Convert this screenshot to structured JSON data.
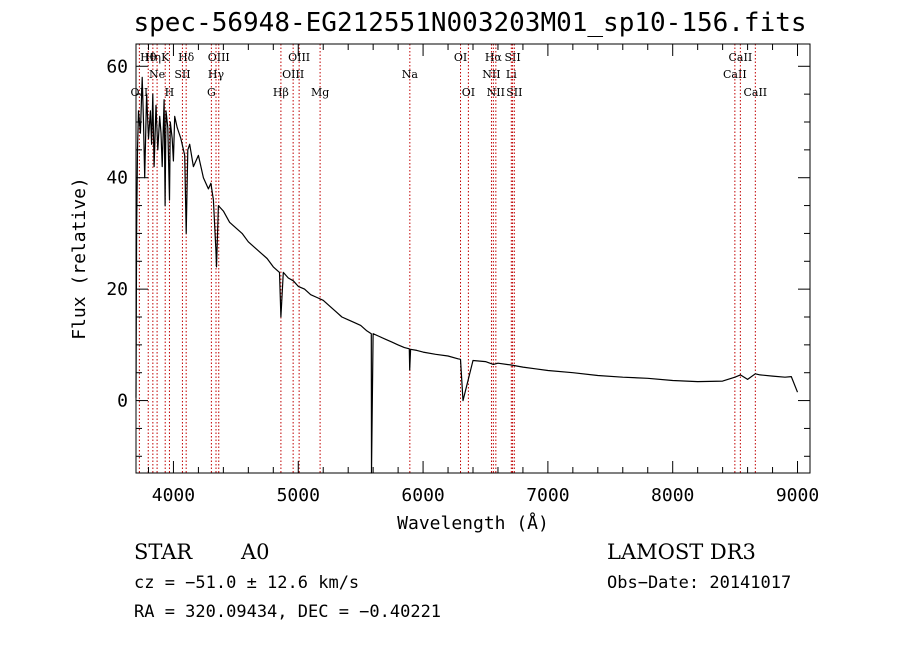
{
  "chart_data": {
    "type": "line",
    "title": "spec-56948-EG212551N003203M01_sp10-156.fits",
    "xlabel": "Wavelength (Å)",
    "ylabel": "Flux (relative)",
    "xlim": [
      3700,
      9100
    ],
    "ylim": [
      -13,
      64
    ],
    "xticks": [
      4000,
      5000,
      6000,
      7000,
      8000,
      9000
    ],
    "yticks": [
      0,
      20,
      40,
      60
    ],
    "series": [
      {
        "name": "flux",
        "x": [
          3700,
          3705,
          3712,
          3720,
          3735,
          3750,
          3760,
          3770,
          3785,
          3800,
          3815,
          3825,
          3835,
          3845,
          3860,
          3875,
          3890,
          3900,
          3910,
          3925,
          3933,
          3940,
          3955,
          3968,
          3975,
          3990,
          4000,
          4010,
          4030,
          4060,
          4090,
          4102,
          4115,
          4130,
          4160,
          4200,
          4240,
          4280,
          4300,
          4320,
          4340,
          4345,
          4360,
          4400,
          4450,
          4500,
          4550,
          4600,
          4650,
          4700,
          4750,
          4800,
          4850,
          4861,
          4880,
          4920,
          4960,
          5000,
          5050,
          5100,
          5150,
          5200,
          5250,
          5300,
          5350,
          5400,
          5450,
          5500,
          5550,
          5585,
          5587,
          5600,
          5650,
          5700,
          5750,
          5800,
          5850,
          5890,
          5893,
          5900,
          5950,
          6000,
          6100,
          6200,
          6280,
          6300,
          6320,
          6400,
          6500,
          6563,
          6600,
          6700,
          6800,
          6900,
          7000,
          7200,
          7400,
          7600,
          7800,
          8000,
          8200,
          8400,
          8498,
          8542,
          8600,
          8662,
          8700,
          8800,
          8900,
          8950,
          9000
        ],
        "y": [
          0.5,
          30,
          45,
          52,
          48,
          58,
          50,
          40,
          55,
          47,
          52,
          46,
          55,
          42,
          53,
          45,
          51,
          48,
          42,
          54,
          35,
          52,
          49,
          36,
          50,
          47,
          43,
          51,
          49,
          47,
          44,
          30,
          45,
          46,
          42,
          44,
          40,
          38,
          39,
          36,
          27,
          24,
          35,
          34,
          32,
          31,
          30,
          28.5,
          27.5,
          26.5,
          25.5,
          24,
          23,
          15,
          23,
          22,
          21.5,
          20.5,
          20,
          19,
          18.5,
          18,
          17,
          16,
          15,
          14.5,
          14,
          13.5,
          12.5,
          12,
          -13,
          12,
          11.5,
          11,
          10.5,
          10,
          9.5,
          9.3,
          5.5,
          9.2,
          9,
          8.7,
          8.3,
          8,
          7.5,
          7.4,
          0,
          7.2,
          7,
          6.5,
          6.7,
          6.4,
          6,
          5.7,
          5.4,
          5,
          4.5,
          4.2,
          4,
          3.6,
          3.4,
          3.5,
          4.2,
          4.6,
          3.8,
          4.8,
          4.6,
          4.4,
          4.2,
          4.3,
          1.5
        ]
      }
    ],
    "spectral_lines": [
      {
        "label": "OII",
        "wavelength": 3727,
        "row": 3
      },
      {
        "label": "Hθ",
        "wavelength": 3798,
        "row": 1
      },
      {
        "label": "Hη",
        "wavelength": 3835,
        "row": 1
      },
      {
        "label": "Ne",
        "wavelength": 3869,
        "row": 2
      },
      {
        "label": "K",
        "wavelength": 3934,
        "row": 1
      },
      {
        "label": "H",
        "wavelength": 3968,
        "row": 3
      },
      {
        "label": "SII",
        "wavelength": 4072,
        "row": 2
      },
      {
        "label": "Hδ",
        "wavelength": 4102,
        "row": 1
      },
      {
        "label": "OIII",
        "wavelength": 4363,
        "row": 1
      },
      {
        "label": "Hγ",
        "wavelength": 4341,
        "row": 2
      },
      {
        "label": "G",
        "wavelength": 4304,
        "row": 3
      },
      {
        "label": "Hβ",
        "wavelength": 4861,
        "row": 3
      },
      {
        "label": "OIII",
        "wavelength": 4959,
        "row": 2
      },
      {
        "label": "OIII",
        "wavelength": 5007,
        "row": 1
      },
      {
        "label": "Mg",
        "wavelength": 5175,
        "row": 3
      },
      {
        "label": "Na",
        "wavelength": 5894,
        "row": 2
      },
      {
        "label": "OI",
        "wavelength": 6300,
        "row": 1
      },
      {
        "label": "OI",
        "wavelength": 6363,
        "row": 3
      },
      {
        "label": "NII",
        "wavelength": 6548,
        "row": 2
      },
      {
        "label": "Hα",
        "wavelength": 6563,
        "row": 1
      },
      {
        "label": "NII",
        "wavelength": 6583,
        "row": 3
      },
      {
        "label": "Li",
        "wavelength": 6707,
        "row": 2
      },
      {
        "label": "SII",
        "wavelength": 6717,
        "row": 1
      },
      {
        "label": "SII",
        "wavelength": 6731,
        "row": 3
      },
      {
        "label": "CaII",
        "wavelength": 8498,
        "row": 2
      },
      {
        "label": "CaII",
        "wavelength": 8542,
        "row": 1
      },
      {
        "label": "CaII",
        "wavelength": 8662,
        "row": 3
      }
    ]
  },
  "info": {
    "class": "STAR",
    "subclass": "A0",
    "survey": "LAMOST DR3",
    "cz": "cz = −51.0 ± 12.6 km/s",
    "obs_date": "Obs−Date: 20141017",
    "coords": "RA = 320.09434, DEC =  −0.40221"
  },
  "colors": {
    "line_marker": "#c00000",
    "spectrum": "#000000",
    "axes": "#000000"
  }
}
